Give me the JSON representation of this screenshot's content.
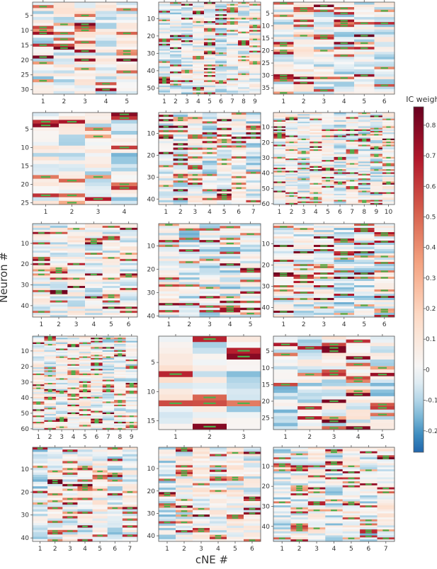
{
  "figure": {
    "ylabel": "Neuron #",
    "xlabel": "cNE #",
    "colorbar_title": "IC weight"
  },
  "colors": {
    "negative": "#2166ac",
    "zero": "#f7f7f7",
    "positive": "#67001f",
    "member_marker": "#4daf4a"
  },
  "chart_data": [
    {
      "type": "heatmap",
      "neurons": 31,
      "cnes": 5,
      "yticks": [
        5,
        10,
        15,
        20,
        25,
        30
      ],
      "xticks": [
        1,
        2,
        3,
        4,
        5
      ]
    },
    {
      "type": "heatmap",
      "neurons": 53,
      "cnes": 9,
      "yticks": [
        10,
        20,
        30,
        40,
        50
      ],
      "xticks": [
        1,
        2,
        3,
        4,
        5,
        6,
        7,
        8,
        9
      ]
    },
    {
      "type": "heatmap",
      "neurons": 37,
      "cnes": 6,
      "yticks": [
        5,
        10,
        15,
        20,
        25,
        30,
        35
      ],
      "xticks": [
        1,
        2,
        3,
        4,
        5,
        6
      ]
    },
    {
      "type": "heatmap",
      "neurons": 25,
      "cnes": 4,
      "yticks": [
        5,
        10,
        15,
        20,
        25
      ],
      "xticks": [
        1,
        2,
        3,
        4
      ]
    },
    {
      "type": "heatmap",
      "neurons": 42,
      "cnes": 7,
      "yticks": [
        10,
        20,
        30,
        40
      ],
      "xticks": [
        1,
        2,
        3,
        4,
        5,
        6,
        7
      ]
    },
    {
      "type": "heatmap",
      "neurons": 60,
      "cnes": 10,
      "yticks": [
        10,
        20,
        30,
        40,
        50,
        60
      ],
      "xticks": [
        1,
        2,
        3,
        4,
        5,
        6,
        7,
        8,
        9,
        10
      ]
    },
    {
      "type": "heatmap",
      "neurons": 45,
      "cnes": 6,
      "yticks": [
        10,
        20,
        30,
        40
      ],
      "xticks": [
        1,
        2,
        3,
        4,
        5,
        6
      ]
    },
    {
      "type": "heatmap",
      "neurons": 40,
      "cnes": 5,
      "yticks": [
        10,
        20,
        30,
        40
      ],
      "xticks": [
        1,
        2,
        3,
        4,
        5
      ]
    },
    {
      "type": "heatmap",
      "neurons": 44,
      "cnes": 6,
      "yticks": [
        10,
        20,
        30,
        40
      ],
      "xticks": [
        1,
        2,
        3,
        4,
        5,
        6
      ]
    },
    {
      "type": "heatmap",
      "neurons": 60,
      "cnes": 9,
      "yticks": [
        10,
        20,
        30,
        40,
        50,
        60
      ],
      "xticks": [
        1,
        2,
        3,
        4,
        5,
        6,
        7,
        8,
        9
      ]
    },
    {
      "type": "heatmap",
      "neurons": 16,
      "cnes": 3,
      "yticks": [
        5,
        10,
        15
      ],
      "xticks": [
        1,
        2,
        3
      ]
    },
    {
      "type": "heatmap",
      "neurons": 28,
      "cnes": 5,
      "yticks": [
        5,
        10,
        15,
        20,
        25
      ],
      "xticks": [
        1,
        2,
        3,
        4,
        5
      ]
    },
    {
      "type": "heatmap",
      "neurons": 41,
      "cnes": 7,
      "yticks": [
        10,
        20,
        30,
        40
      ],
      "xticks": [
        1,
        2,
        3,
        4,
        5,
        6,
        7
      ]
    },
    {
      "type": "heatmap",
      "neurons": 42,
      "cnes": 6,
      "yticks": [
        10,
        20,
        30,
        40
      ],
      "xticks": [
        1,
        2,
        3,
        4,
        5,
        6
      ]
    },
    {
      "type": "heatmap",
      "neurons": 47,
      "cnes": 7,
      "yticks": [
        10,
        20,
        30,
        40
      ],
      "xticks": [
        1,
        2,
        3,
        4,
        5,
        6,
        7
      ]
    }
  ],
  "colorbar": {
    "vmin": -0.27,
    "vmax": 0.86,
    "ticks": [
      {
        "value": 0.8,
        "label": "0.8"
      },
      {
        "value": 0.7,
        "label": "0.7"
      },
      {
        "value": 0.6,
        "label": "0.6"
      },
      {
        "value": 0.5,
        "label": "0.5"
      },
      {
        "value": 0.4,
        "label": "0.4"
      },
      {
        "value": 0.3,
        "label": "0.3"
      },
      {
        "value": 0.2,
        "label": "0.2"
      },
      {
        "value": 0.1,
        "label": "0.1"
      },
      {
        "value": 0.0,
        "label": "0"
      },
      {
        "value": -0.1,
        "label": "-0.1"
      },
      {
        "value": -0.2,
        "label": "-0.2"
      }
    ]
  }
}
